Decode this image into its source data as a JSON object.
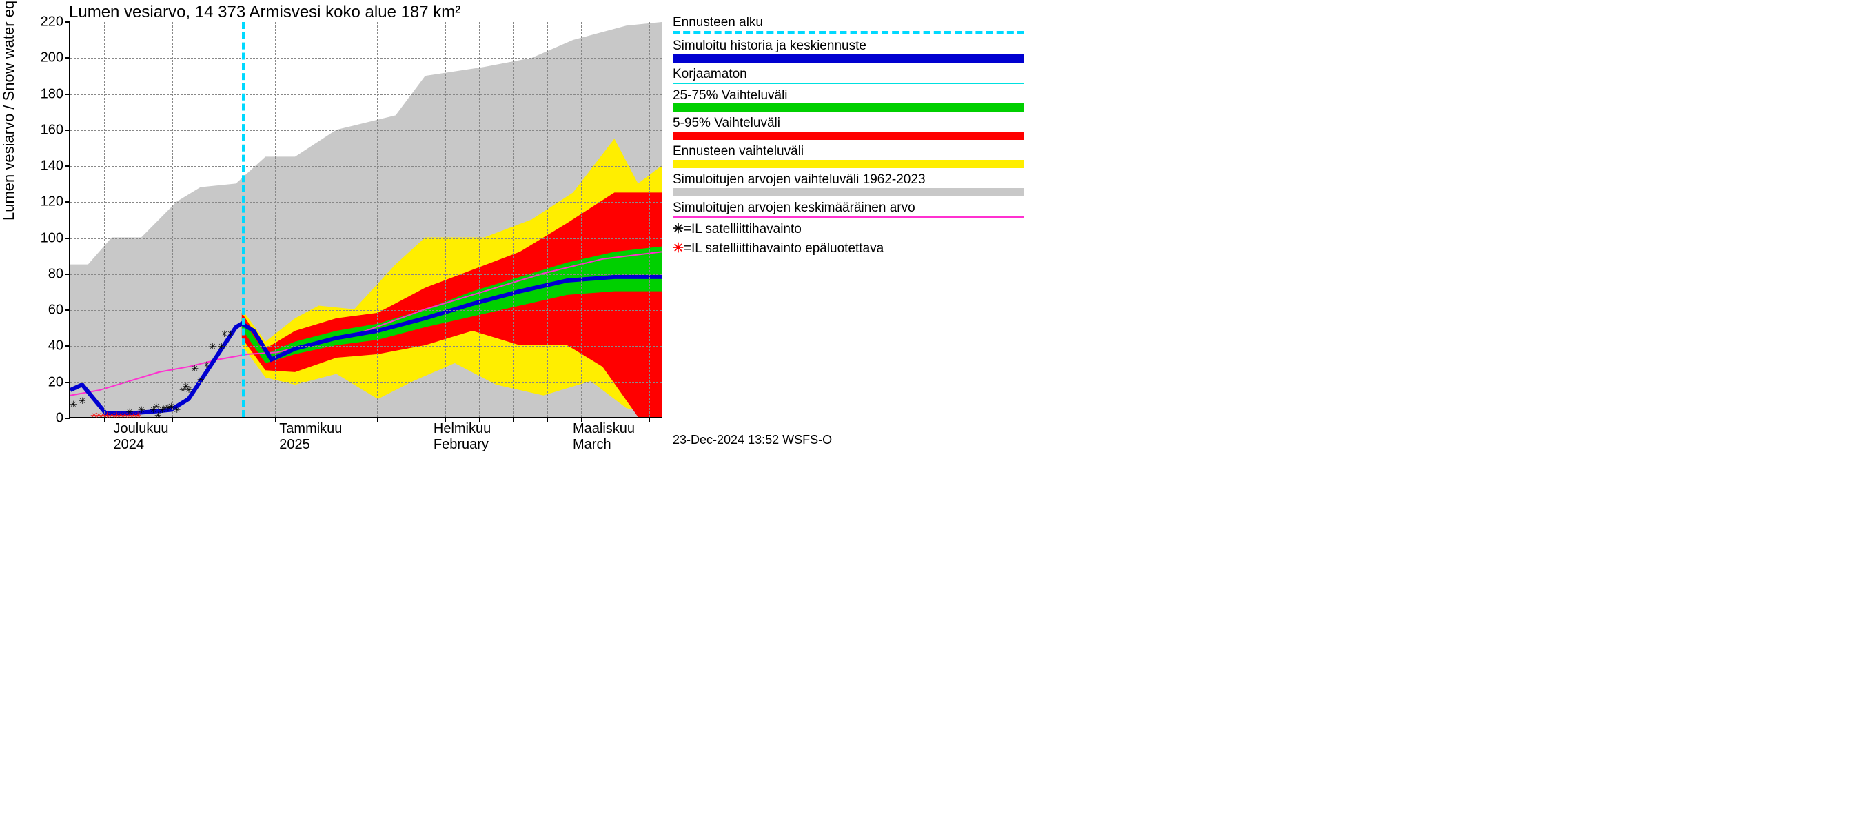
{
  "title": "Lumen vesiarvo, 14 373 Armisvesi koko alue 187 km²",
  "y_axis": {
    "label": "Lumen vesiarvo / Snow water equiv.    mm",
    "min": 0,
    "max": 220,
    "tick_step": 20,
    "ticks": [
      0,
      20,
      40,
      60,
      80,
      100,
      120,
      140,
      160,
      180,
      200,
      220
    ],
    "fontsize": 20
  },
  "x_axis": {
    "months": [
      {
        "label_top": "Joulukuu",
        "label_bot": "2024",
        "pos": 0.075
      },
      {
        "label_top": "Tammikuu",
        "label_bot": "2025",
        "pos": 0.355
      },
      {
        "label_top": "Helmikuu",
        "label_bot": "February",
        "pos": 0.615
      },
      {
        "label_top": "Maaliskuu",
        "label_bot": "March",
        "pos": 0.85
      }
    ],
    "minor_ticks_per_month": 4
  },
  "style": {
    "background_color": "#ffffff",
    "grid_color": "#888888",
    "axis_color": "#000000",
    "title_fontsize": 24,
    "label_fontsize": 22
  },
  "colors": {
    "forecast_start": "#00d9ff",
    "history_blue": "#0000d0",
    "uncorrected": "#00e0e0",
    "band_25_75": "#00d000",
    "band_5_95": "#ff0000",
    "band_full": "#ffee00",
    "band_historic": "#c8c8c8",
    "mean_magenta": "#ff30d0",
    "sat_black": "#000000",
    "sat_red": "#ff0000"
  },
  "legend": {
    "items": [
      {
        "label": "Ennusteen alku",
        "swatch": "dashed",
        "color": "#00d9ff"
      },
      {
        "label": "Simuloitu historia ja keskiennuste",
        "swatch": "thick",
        "color": "#0000d0"
      },
      {
        "label": "Korjaamaton",
        "swatch": "thinline",
        "color": "#00e0e0"
      },
      {
        "label": "25-75% Vaihteluväli",
        "swatch": "thick",
        "color": "#00d000"
      },
      {
        "label": "5-95% Vaihteluväli",
        "swatch": "thick",
        "color": "#ff0000"
      },
      {
        "label": "Ennusteen vaihteluväli",
        "swatch": "thick",
        "color": "#ffee00"
      },
      {
        "label": "Simuloitujen arvojen vaihteluväli 1962-2023",
        "swatch": "thick",
        "color": "#c8c8c8"
      },
      {
        "label": "Simuloitujen arvojen keskimääräinen arvo",
        "swatch": "thinline",
        "color": "#ff30d0"
      }
    ],
    "sat_black": "=IL satelliittihavainto",
    "sat_red": "=IL satelliittihavainto epäluotettava"
  },
  "forecast_start_x": 0.29,
  "timestamp": "23-Dec-2024 13:52 WSFS-O",
  "bands": {
    "historic": {
      "upper": [
        [
          0,
          85
        ],
        [
          0.03,
          85
        ],
        [
          0.07,
          100
        ],
        [
          0.12,
          100
        ],
        [
          0.18,
          120
        ],
        [
          0.22,
          128
        ],
        [
          0.28,
          130
        ],
        [
          0.33,
          145
        ],
        [
          0.38,
          145
        ],
        [
          0.45,
          160
        ],
        [
          0.55,
          168
        ],
        [
          0.6,
          190
        ],
        [
          0.7,
          195
        ],
        [
          0.78,
          200
        ],
        [
          0.85,
          210
        ],
        [
          0.94,
          218
        ],
        [
          1,
          220
        ]
      ],
      "lower": [
        [
          0,
          0
        ],
        [
          1,
          0
        ]
      ]
    },
    "full": {
      "upper": [
        [
          0.29,
          60
        ],
        [
          0.33,
          42
        ],
        [
          0.38,
          55
        ],
        [
          0.42,
          62
        ],
        [
          0.48,
          60
        ],
        [
          0.55,
          85
        ],
        [
          0.6,
          100
        ],
        [
          0.7,
          100
        ],
        [
          0.78,
          110
        ],
        [
          0.85,
          125
        ],
        [
          0.92,
          155
        ],
        [
          0.96,
          130
        ],
        [
          1,
          140
        ]
      ],
      "lower": [
        [
          0.29,
          40
        ],
        [
          0.33,
          22
        ],
        [
          0.38,
          18
        ],
        [
          0.45,
          24
        ],
        [
          0.52,
          10
        ],
        [
          0.58,
          20
        ],
        [
          0.65,
          30
        ],
        [
          0.72,
          18
        ],
        [
          0.8,
          12
        ],
        [
          0.88,
          20
        ],
        [
          0.94,
          5
        ],
        [
          1,
          0
        ]
      ]
    },
    "p5_95": {
      "upper": [
        [
          0.29,
          58
        ],
        [
          0.33,
          38
        ],
        [
          0.38,
          48
        ],
        [
          0.45,
          55
        ],
        [
          0.52,
          58
        ],
        [
          0.6,
          72
        ],
        [
          0.68,
          82
        ],
        [
          0.76,
          92
        ],
        [
          0.84,
          108
        ],
        [
          0.92,
          125
        ],
        [
          1,
          125
        ]
      ],
      "lower": [
        [
          0.29,
          44
        ],
        [
          0.33,
          26
        ],
        [
          0.38,
          25
        ],
        [
          0.45,
          33
        ],
        [
          0.52,
          35
        ],
        [
          0.6,
          40
        ],
        [
          0.68,
          48
        ],
        [
          0.76,
          40
        ],
        [
          0.84,
          40
        ],
        [
          0.9,
          28
        ],
        [
          0.96,
          0
        ],
        [
          1,
          0
        ]
      ]
    },
    "p25_75": {
      "upper": [
        [
          0.29,
          55
        ],
        [
          0.33,
          35
        ],
        [
          0.38,
          42
        ],
        [
          0.45,
          48
        ],
        [
          0.52,
          52
        ],
        [
          0.6,
          60
        ],
        [
          0.68,
          70
        ],
        [
          0.76,
          78
        ],
        [
          0.84,
          86
        ],
        [
          0.92,
          92
        ],
        [
          1,
          95
        ]
      ],
      "lower": [
        [
          0.29,
          49
        ],
        [
          0.33,
          30
        ],
        [
          0.38,
          35
        ],
        [
          0.45,
          40
        ],
        [
          0.52,
          43
        ],
        [
          0.6,
          50
        ],
        [
          0.68,
          56
        ],
        [
          0.76,
          62
        ],
        [
          0.84,
          68
        ],
        [
          0.92,
          70
        ],
        [
          1,
          70
        ]
      ]
    }
  },
  "lines": {
    "blue": [
      [
        0,
        15
      ],
      [
        0.02,
        18
      ],
      [
        0.04,
        10
      ],
      [
        0.06,
        2
      ],
      [
        0.1,
        2
      ],
      [
        0.14,
        3
      ],
      [
        0.17,
        4
      ],
      [
        0.2,
        10
      ],
      [
        0.23,
        25
      ],
      [
        0.26,
        40
      ],
      [
        0.28,
        50
      ],
      [
        0.29,
        52
      ],
      [
        0.31,
        48
      ],
      [
        0.34,
        32
      ],
      [
        0.38,
        38
      ],
      [
        0.45,
        44
      ],
      [
        0.52,
        48
      ],
      [
        0.6,
        55
      ],
      [
        0.68,
        63
      ],
      [
        0.76,
        70
      ],
      [
        0.84,
        76
      ],
      [
        0.92,
        78
      ],
      [
        1,
        78
      ]
    ],
    "magenta": [
      [
        0,
        12
      ],
      [
        0.05,
        15
      ],
      [
        0.1,
        20
      ],
      [
        0.15,
        25
      ],
      [
        0.2,
        28
      ],
      [
        0.25,
        32
      ],
      [
        0.3,
        35
      ],
      [
        0.35,
        36
      ],
      [
        0.4,
        40
      ],
      [
        0.5,
        48
      ],
      [
        0.6,
        60
      ],
      [
        0.7,
        70
      ],
      [
        0.8,
        80
      ],
      [
        0.9,
        88
      ],
      [
        1,
        92
      ]
    ]
  },
  "markers": {
    "black": [
      [
        0.005,
        8
      ],
      [
        0.02,
        10
      ],
      [
        0.1,
        4
      ],
      [
        0.12,
        5
      ],
      [
        0.14,
        5
      ],
      [
        0.145,
        7
      ],
      [
        0.148,
        2
      ],
      [
        0.155,
        5
      ],
      [
        0.16,
        6
      ],
      [
        0.165,
        6
      ],
      [
        0.17,
        7
      ],
      [
        0.18,
        5
      ],
      [
        0.19,
        16
      ],
      [
        0.195,
        18
      ],
      [
        0.2,
        16
      ],
      [
        0.21,
        28
      ],
      [
        0.22,
        22
      ],
      [
        0.23,
        30
      ],
      [
        0.24,
        40
      ],
      [
        0.255,
        40
      ],
      [
        0.26,
        47
      ],
      [
        0.27,
        47
      ]
    ],
    "red": [
      [
        0.04,
        2
      ],
      [
        0.048,
        2
      ],
      [
        0.055,
        2
      ],
      [
        0.062,
        2
      ],
      [
        0.07,
        2
      ],
      [
        0.078,
        2
      ],
      [
        0.085,
        2
      ],
      [
        0.092,
        2
      ],
      [
        0.1,
        2
      ],
      [
        0.107,
        2
      ],
      [
        0.114,
        2
      ]
    ]
  }
}
